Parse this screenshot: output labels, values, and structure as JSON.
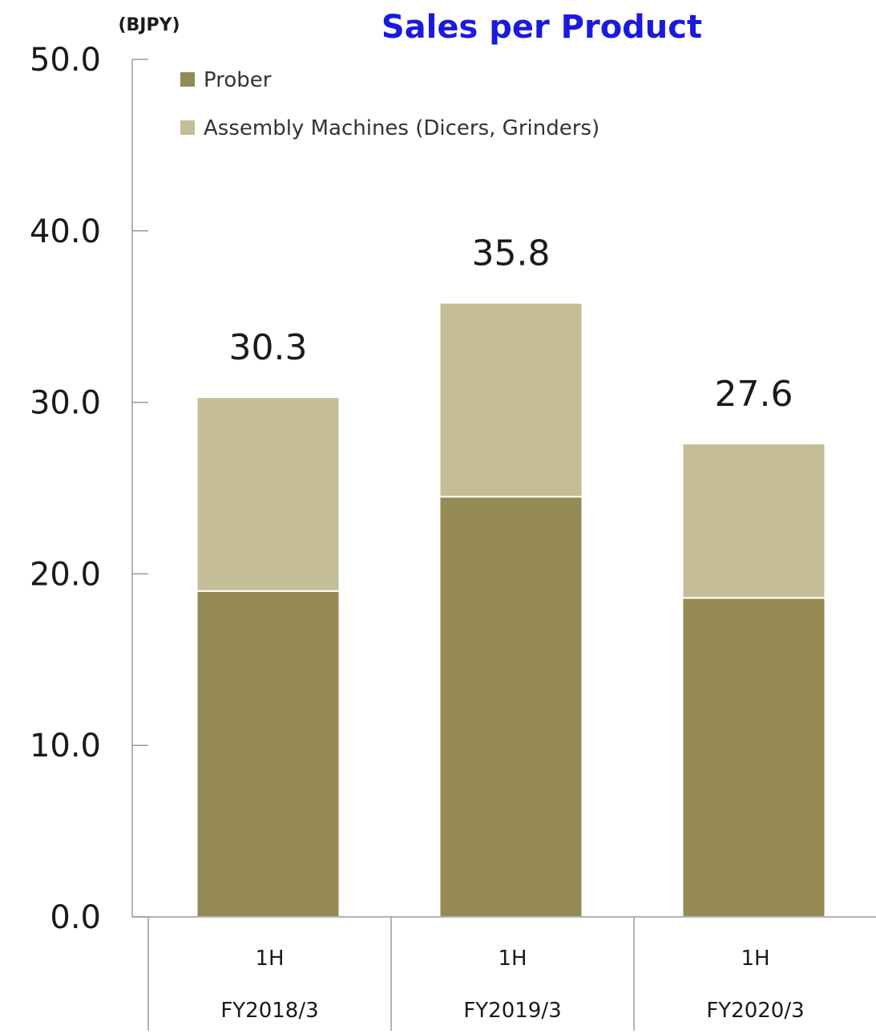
{
  "chart_data": {
    "type": "bar",
    "stacked": true,
    "title": "Sales per Product",
    "unit_label": "(BJPY)",
    "ylim": [
      0,
      50
    ],
    "yticks": [
      "0.0",
      "10.0",
      "20.0",
      "30.0",
      "40.0",
      "50.0"
    ],
    "categories": [
      {
        "period": "1H",
        "fiscal_year": "FY2018/3"
      },
      {
        "period": "1H",
        "fiscal_year": "FY2019/3"
      },
      {
        "period": "1H",
        "fiscal_year": "FY2020/3"
      }
    ],
    "series": [
      {
        "name": "Prober",
        "color": "#958a54",
        "values": [
          19.0,
          24.5,
          18.6
        ]
      },
      {
        "name": "Assembly Machines (Dicers, Grinders)",
        "color": "#c5bd98",
        "values": [
          11.3,
          11.3,
          9.0
        ]
      }
    ],
    "totals": [
      "30.3",
      "35.8",
      "27.6"
    ],
    "legend_position": "top-left",
    "grid": false
  }
}
